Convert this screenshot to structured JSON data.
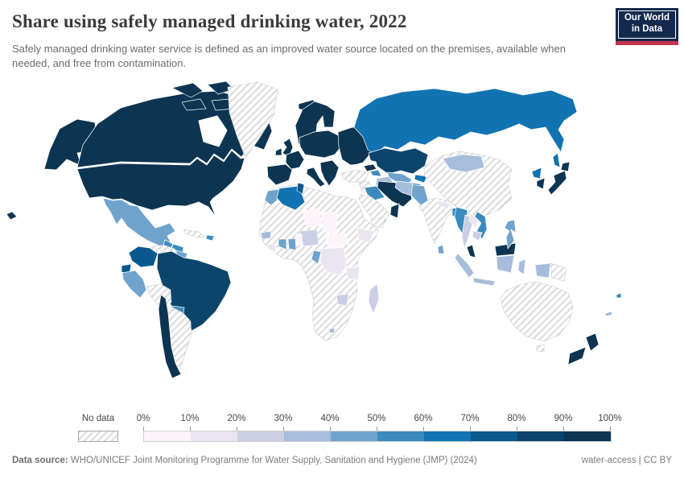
{
  "header": {
    "title": "Share using safely managed drinking water, 2022",
    "subtitle": "Safely managed drinking water service is defined as an improved water source located on the premises, available when needed, and free from contamination.",
    "logo": {
      "line1": "Our World",
      "line2": "in Data",
      "bg_color": "#14294d",
      "accent_color": "#c0344b"
    }
  },
  "legend": {
    "no_data_label": "No data",
    "tick_labels": [
      "0%",
      "10%",
      "20%",
      "30%",
      "40%",
      "50%",
      "60%",
      "70%",
      "80%",
      "90%",
      "100%"
    ],
    "colors": [
      "#fdf4f9",
      "#e9e6f2",
      "#cbcfe5",
      "#a6bddb",
      "#6fa3cc",
      "#3b8bbe",
      "#1173b1",
      "#09588e",
      "#0b456c",
      "#0d3552"
    ]
  },
  "footer": {
    "source_label": "Data source:",
    "source_text": " WHO/UNICEF Joint Monitoring Programme for Water Supply, Sanitation and Hygiene (JMP) (2024)",
    "license_text": "water-access | CC BY"
  },
  "chart_data": {
    "type": "heatmap",
    "subtype": "choropleth-world-map",
    "title": "Share using safely managed drinking water, 2022",
    "unit": "%",
    "range": [
      0,
      100
    ],
    "legend_position": "bottom",
    "legend_bands": [
      "0-10",
      "10-20",
      "20-30",
      "30-40",
      "40-50",
      "50-60",
      "60-70",
      "70-80",
      "80-90",
      "90-100"
    ],
    "regions": {
      "canada": "90-100",
      "united-states": "90-100",
      "greenland": "no-data",
      "mexico": "40-50",
      "guatemala": "50-60",
      "honduras-nicaragua": "50-60",
      "costa-rica": "70-80",
      "panama": "80-90",
      "cuba": "no-data",
      "dominican-republic": "50-60",
      "colombia": "70-80",
      "venezuela": "no-data",
      "guyana-suriname": "40-50",
      "ecuador": "70-80",
      "peru": "40-50",
      "brazil": "80-90",
      "bolivia": "no-data",
      "paraguay": "50-60",
      "chile": "90-100",
      "argentina": "no-data",
      "iceland": "90-100",
      "united-kingdom": "90-100",
      "ireland": "90-100",
      "northern-europe": "90-100",
      "spain-portugal": "90-100",
      "france": "90-100",
      "central-europe": "90-100",
      "italy": "90-100",
      "balkans-greece": "90-100",
      "eastern-europe": "90-100",
      "russia": "60-70",
      "kazakhstan": "80-90",
      "turkmenistan": "30-40",
      "uzbekistan": "40-50",
      "kyrgyzstan": "60-70",
      "tajikistan": "50-60",
      "georgia": "90-100",
      "azerbaijan": "50-60",
      "turkey": "no-data",
      "syria": "no-data",
      "iraq": "50-60",
      "iran": "90-100",
      "saudi-arabia": "no-data",
      "oman": "90-100",
      "yemen": "no-data",
      "morocco": "40-50",
      "algeria": "60-70",
      "tunisia": "70-80",
      "africa-nodata": "no-data",
      "niger": "0-10",
      "chad": "0-10",
      "central-african-republic": "0-10",
      "nigeria": "20-30",
      "togo-benin": "0-10",
      "ghana": "40-50",
      "cote-divoire": "40-50",
      "senegal": "30-40",
      "sierra-leone-liberia": "10-20",
      "congo": "40-50",
      "dr-congo": "10-20",
      "ethiopia": "10-20",
      "tanzania": "10-20",
      "zimbabwe": "20-30",
      "madagascar": "20-30",
      "lesotho": "30-40",
      "china": "no-data",
      "mongolia": "30-40",
      "india": "no-data",
      "pakistan": "40-50",
      "afghanistan": "30-40",
      "nepal": "10-20",
      "bangladesh": "50-60",
      "sri-lanka": "40-50",
      "myanmar": "50-60",
      "thailand": "20-30",
      "laos": "10-20",
      "vietnam": "50-60",
      "cambodia": "20-30",
      "malaysia": "90-100",
      "indonesia": "30-40",
      "philippines": "40-50",
      "north-korea": "60-70",
      "south-korea": "90-100",
      "japan": "90-100",
      "australia": "no-data",
      "new-zealand": "90-100",
      "papua-new-guinea": "no-data",
      "fiji": "50-60",
      "new-caledonia": "30-40"
    }
  }
}
